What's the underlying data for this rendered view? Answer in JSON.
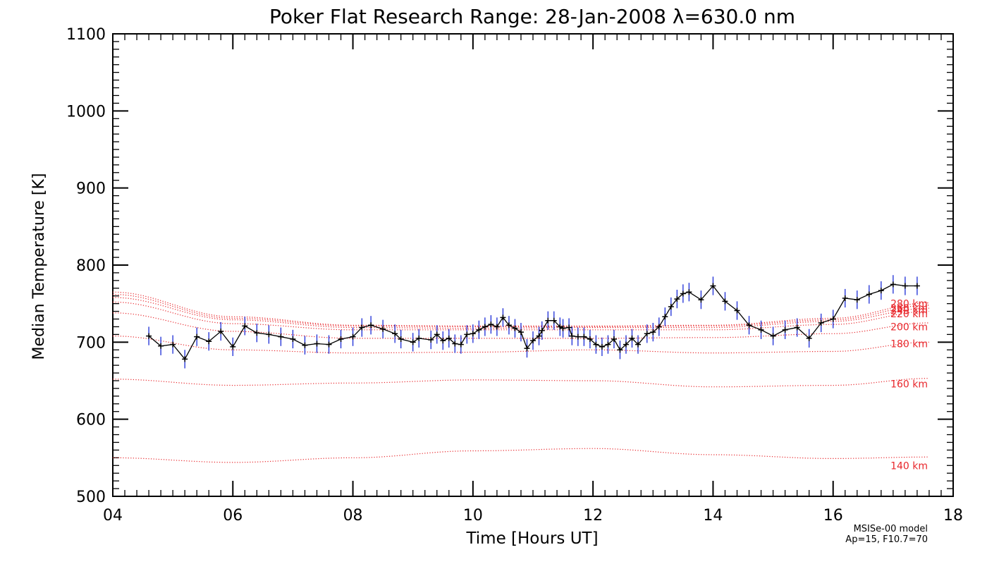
{
  "chart_data": {
    "type": "line",
    "title": "Poker Flat Research Range: 28-Jan-2008 λ=630.0 nm",
    "xlabel": "Time [Hours UT]",
    "ylabel": "Median Temperature [K]",
    "xlim": [
      4,
      18
    ],
    "ylim": [
      500,
      1100
    ],
    "x_ticks": [
      4,
      6,
      8,
      10,
      12,
      14,
      16,
      18
    ],
    "x_tick_labels": [
      "04",
      "06",
      "08",
      "10",
      "12",
      "14",
      "16",
      "18"
    ],
    "y_ticks": [
      500,
      600,
      700,
      800,
      900,
      1000,
      1100
    ],
    "y_tick_labels": [
      "500",
      "600",
      "700",
      "800",
      "900",
      "1000",
      "1100"
    ],
    "grid": false,
    "colors": {
      "data_line": "#000000",
      "error_bars": "#1a2bd6",
      "model": "#e8262b"
    },
    "series": [
      {
        "name": "Median Temperature",
        "error": 12,
        "points": [
          [
            4.6,
            708
          ],
          [
            4.8,
            695
          ],
          [
            5.0,
            697
          ],
          [
            5.2,
            678
          ],
          [
            5.4,
            707
          ],
          [
            5.6,
            701
          ],
          [
            5.8,
            714
          ],
          [
            6.0,
            694
          ],
          [
            6.2,
            721
          ],
          [
            6.4,
            712
          ],
          [
            6.6,
            710
          ],
          [
            6.8,
            707
          ],
          [
            7.0,
            704
          ],
          [
            7.2,
            696
          ],
          [
            7.4,
            698
          ],
          [
            7.6,
            697
          ],
          [
            7.8,
            704
          ],
          [
            8.0,
            707
          ],
          [
            8.15,
            719
          ],
          [
            8.3,
            722
          ],
          [
            8.5,
            717
          ],
          [
            8.7,
            711
          ],
          [
            8.8,
            704
          ],
          [
            9.0,
            700
          ],
          [
            9.1,
            705
          ],
          [
            9.3,
            703
          ],
          [
            9.4,
            710
          ],
          [
            9.5,
            702
          ],
          [
            9.6,
            705
          ],
          [
            9.7,
            698
          ],
          [
            9.8,
            697
          ],
          [
            9.9,
            710
          ],
          [
            10.0,
            711
          ],
          [
            10.1,
            716
          ],
          [
            10.2,
            720
          ],
          [
            10.3,
            723
          ],
          [
            10.4,
            720
          ],
          [
            10.5,
            732
          ],
          [
            10.6,
            722
          ],
          [
            10.7,
            718
          ],
          [
            10.8,
            713
          ],
          [
            10.9,
            692
          ],
          [
            11.0,
            702
          ],
          [
            11.1,
            708
          ],
          [
            11.15,
            715
          ],
          [
            11.25,
            728
          ],
          [
            11.35,
            728
          ],
          [
            11.45,
            720
          ],
          [
            11.5,
            718
          ],
          [
            11.6,
            719
          ],
          [
            11.65,
            708
          ],
          [
            11.75,
            707
          ],
          [
            11.85,
            707
          ],
          [
            11.95,
            704
          ],
          [
            12.05,
            697
          ],
          [
            12.15,
            694
          ],
          [
            12.25,
            697
          ],
          [
            12.35,
            704
          ],
          [
            12.45,
            690
          ],
          [
            12.55,
            697
          ],
          [
            12.65,
            705
          ],
          [
            12.75,
            697
          ],
          [
            12.9,
            711
          ],
          [
            13.0,
            713
          ],
          [
            13.1,
            720
          ],
          [
            13.2,
            733
          ],
          [
            13.3,
            746
          ],
          [
            13.4,
            756
          ],
          [
            13.5,
            763
          ],
          [
            13.6,
            765
          ],
          [
            13.8,
            755
          ],
          [
            14.0,
            773
          ],
          [
            14.2,
            753
          ],
          [
            14.4,
            741
          ],
          [
            14.6,
            722
          ],
          [
            14.8,
            716
          ],
          [
            15.0,
            708
          ],
          [
            15.2,
            716
          ],
          [
            15.4,
            719
          ],
          [
            15.6,
            705
          ],
          [
            15.8,
            725
          ],
          [
            16.0,
            730
          ],
          [
            16.2,
            757
          ],
          [
            16.4,
            755
          ],
          [
            16.6,
            762
          ],
          [
            16.8,
            767
          ],
          [
            17.0,
            775
          ],
          [
            17.2,
            773
          ],
          [
            17.4,
            773
          ]
        ]
      }
    ],
    "model_curves": [
      {
        "name": "140 km",
        "x": [
          4,
          6,
          8,
          10,
          12,
          14,
          16,
          17.6
        ],
        "y": [
          550,
          544,
          550,
          559,
          562,
          554,
          549,
          551
        ]
      },
      {
        "name": "160 km",
        "x": [
          4,
          6,
          8,
          10,
          12,
          14,
          16,
          17.6
        ],
        "y": [
          652,
          644,
          647,
          651,
          650,
          642,
          644,
          653
        ]
      },
      {
        "name": "180 km",
        "x": [
          4,
          6,
          8,
          10,
          12,
          14,
          16,
          17.6
        ],
        "y": [
          708,
          690,
          686,
          687,
          690,
          686,
          688,
          700
        ]
      },
      {
        "name": "200 km",
        "x": [
          4,
          6,
          8,
          10,
          12,
          14,
          16,
          17.6
        ],
        "y": [
          738,
          714,
          705,
          705,
          705,
          706,
          711,
          725
        ]
      },
      {
        "name": "220 km",
        "x": [
          4,
          6,
          8,
          10,
          12,
          14,
          16,
          17.6
        ],
        "y": [
          752,
          724,
          716,
          716,
          716,
          716,
          723,
          740
        ]
      },
      {
        "name": "240 km",
        "x": [
          4,
          6,
          8,
          10,
          12,
          14,
          16,
          17.6
        ],
        "y": [
          758,
          729,
          719,
          718,
          719,
          719,
          727,
          744
        ]
      },
      {
        "name": "260 km",
        "x": [
          4,
          6,
          8,
          10,
          12,
          14,
          16,
          17.6
        ],
        "y": [
          762,
          731,
          721,
          720,
          720,
          721,
          729,
          748
        ]
      },
      {
        "name": "280 km",
        "x": [
          4,
          6,
          8,
          10,
          12,
          14,
          16,
          17.6
        ],
        "y": [
          765,
          733,
          722,
          721,
          721,
          722,
          731,
          751
        ]
      }
    ],
    "model_label_values": [
      540,
      646,
      698,
      720,
      737,
      741,
      744,
      750
    ],
    "annotation": [
      "MSISe-00 model",
      "Ap=15, F10.7=70"
    ]
  }
}
